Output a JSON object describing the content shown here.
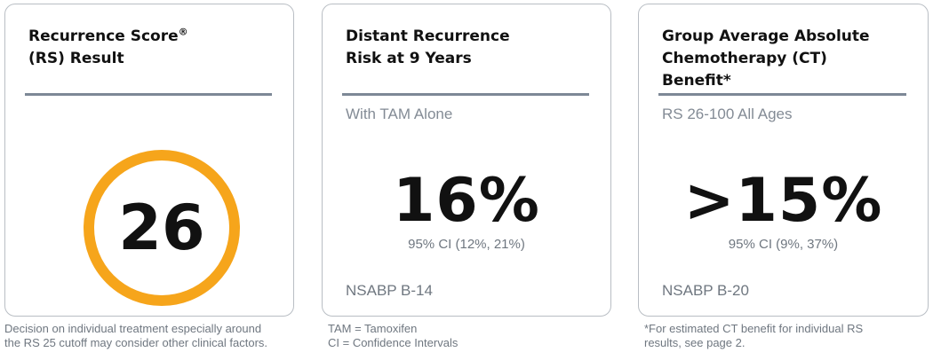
{
  "card_rs": {
    "title_line1": "Recurrence Score",
    "title_mark": "®",
    "title_line2": "(RS) Result",
    "score": "26",
    "ring_color": "#f6a51b",
    "footnote_line1": "Decision on individual treatment especially around",
    "footnote_line2": "the RS 25 cutoff may consider other clinical factors."
  },
  "card_distant": {
    "title_line1": "Distant Recurrence",
    "title_line2": "Risk at 9 Years",
    "subtitle": "With TAM Alone",
    "value": "16%",
    "ci": "95% CI (12%, 21%)",
    "study": "NSABP B-14",
    "footnote_line1": "TAM = Tamoxifen",
    "footnote_line2": "CI = Confidence Intervals"
  },
  "card_benefit": {
    "title_line1": "Group Average Absolute",
    "title_line2": "Chemotherapy (CT)",
    "title_line3": "Benefit*",
    "subtitle": "RS 26-100 All Ages",
    "value": ">15%",
    "ci": "95% CI (9%, 37%)",
    "study": "NSABP B-20",
    "footnote_line1": "*For estimated CT benefit for individual RS",
    "footnote_line2": "results, see page 2."
  }
}
